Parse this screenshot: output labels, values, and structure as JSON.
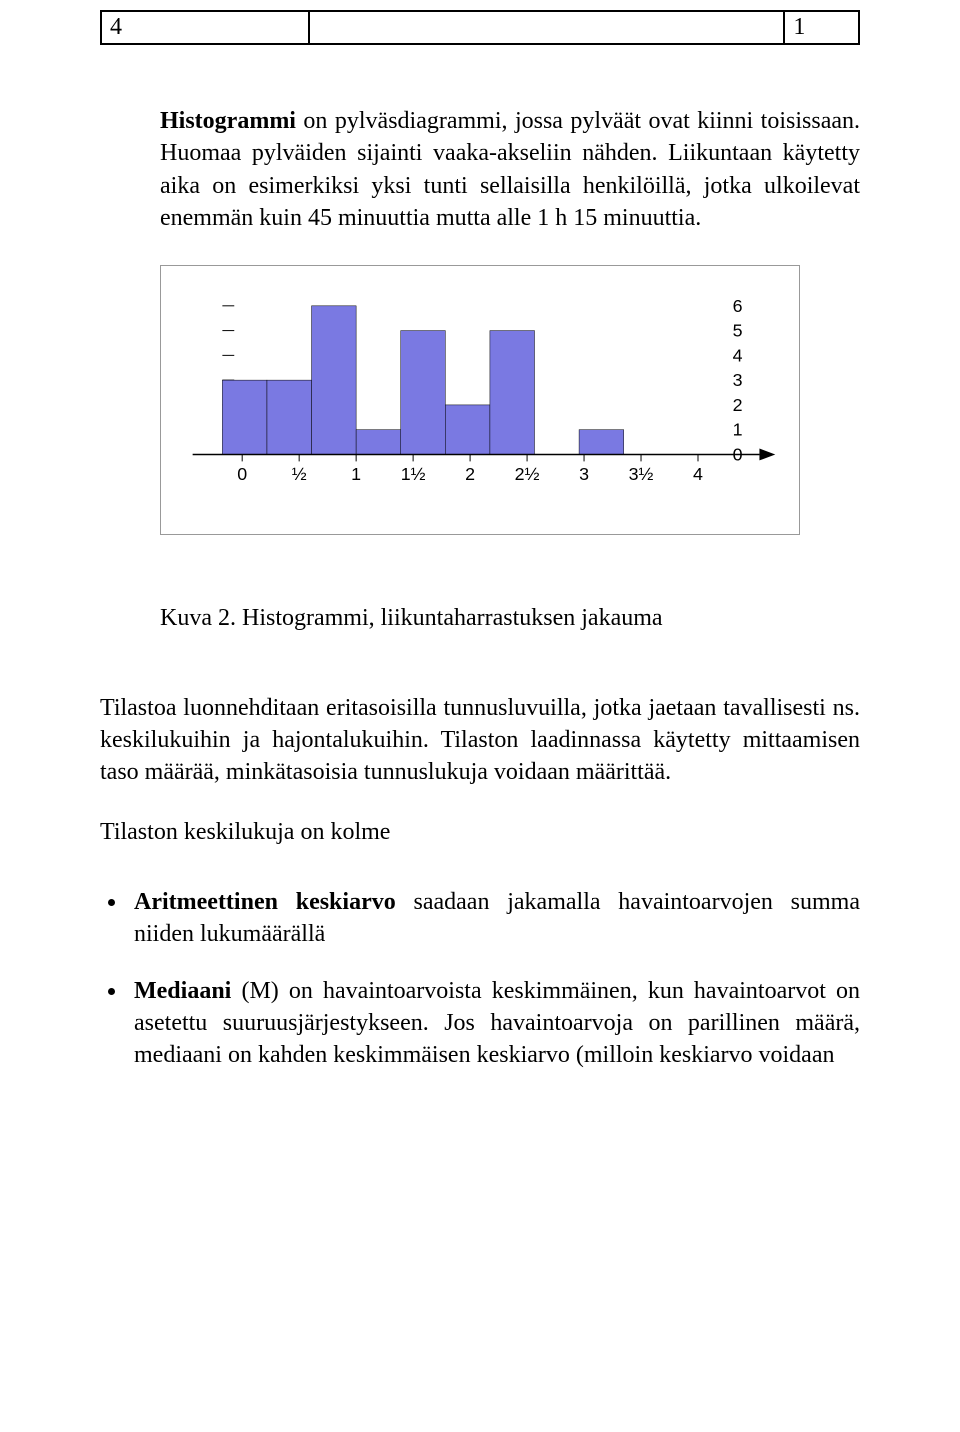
{
  "top_row": {
    "c1": "4",
    "c2": "",
    "c3": "1",
    "cell3_align": "left"
  },
  "para1": {
    "bold": "Histogrammi",
    "rest": " on pylväsdiagrammi, jossa pylväät ovat kiinni toisissaan. Huomaa pylväiden sijainti vaaka-akseliin nähden. Liikuntaan käytetty aika on esimerkiksi yksi tunti sellaisilla henkilöillä, jotka ulkoilevat enemmän kuin 45 minuuttia mutta  alle 1 h 15 minuuttia."
  },
  "chart": {
    "type": "histogram",
    "xlabels": [
      "0",
      "½",
      "1",
      "1½",
      "2",
      "2½",
      "3",
      "3½",
      "4"
    ],
    "ylabels": [
      "0",
      "1",
      "2",
      "3",
      "4",
      "5",
      "6"
    ],
    "bar_heights": [
      3,
      3,
      6,
      1,
      5,
      2,
      5,
      0,
      1
    ],
    "bar_color": "#7a79e2",
    "border_color": "#999999",
    "axis_color": "#000000",
    "bg_color": "#ffffff",
    "ymax": 6,
    "label_fontsize": 18
  },
  "caption": "Kuva 2. Histogrammi, liikuntaharrastuksen jakauma",
  "para2": "Tilastoa luonnehditaan eritasoisilla tunnusluvuilla, jotka jaetaan tavallisesti ns. keskilukuihin ja hajontalukuihin. Tilaston laadinnassa käytetty mittaamisen taso määrää, minkätasoisia tunnuslukuja voidaan määrittää.",
  "heading": "Tilaston keskilukuja on kolme",
  "bullet1": {
    "bold": "Aritmeettinen keskiarvo",
    "rest": " saadaan jakamalla havaintoarvojen summa niiden lukumäärällä"
  },
  "bullet2": {
    "bold": "Mediaani",
    "rest": " (M) on havaintoarvoista keskimmäinen, kun havaintoarvot on asetettu suuruusjärjestykseen. Jos havaintoarvoja on parillinen määrä, mediaani on kahden keskimmäisen keskiarvo (milloin keskiarvo voidaan"
  }
}
